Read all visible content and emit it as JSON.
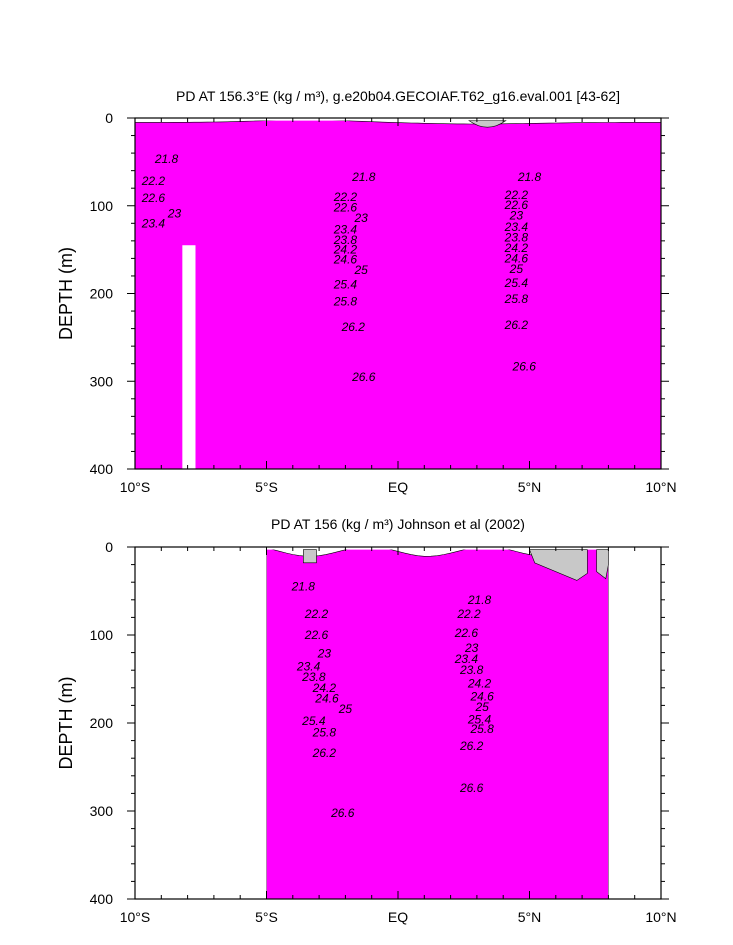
{
  "chart_data": [
    {
      "type": "contour",
      "title": "PD AT 156.3°E (kg / m³), g.e20b04.GECOIAF.T62_g16.eval.001 [43-62]",
      "ylabel": "DEPTH (m)",
      "xlabel": "",
      "xlim": [
        -10,
        10
      ],
      "ylim": [
        0,
        400
      ],
      "y_inverted": true,
      "x_ticks": [
        -10,
        -5,
        0,
        5,
        10
      ],
      "x_tick_labels": [
        "10°S",
        "5°S",
        "EQ",
        "5°N",
        "10°N"
      ],
      "y_ticks": [
        0,
        100,
        200,
        300,
        400
      ],
      "y_tick_labels": [
        "0",
        "100",
        "200",
        "300",
        "400"
      ],
      "data_extent": [
        -10,
        10
      ],
      "missing_column": [
        -8.2,
        -7.7,
        145,
        400
      ],
      "levels": [
        21.8,
        22.2,
        22.6,
        23,
        23.4,
        23.8,
        24.2,
        24.6,
        25,
        25.4,
        25.8,
        26.2,
        26.6
      ],
      "contour_labels": [
        {
          "text": "21.8",
          "x": -8.8,
          "y": 47
        },
        {
          "text": "21.8",
          "x": -1.3,
          "y": 67
        },
        {
          "text": "21.8",
          "x": 5.0,
          "y": 67
        },
        {
          "text": "22.2",
          "x": -9.3,
          "y": 72
        },
        {
          "text": "22.6",
          "x": -9.3,
          "y": 91
        },
        {
          "text": "23",
          "x": -8.5,
          "y": 109
        },
        {
          "text": "23.4",
          "x": -9.3,
          "y": 120
        },
        {
          "text": "22.2",
          "x": -2.0,
          "y": 90
        },
        {
          "text": "22.6",
          "x": -2.0,
          "y": 102
        },
        {
          "text": "23",
          "x": -1.4,
          "y": 114
        },
        {
          "text": "23.4",
          "x": -2.0,
          "y": 127
        },
        {
          "text": "23.8",
          "x": -2.0,
          "y": 139
        },
        {
          "text": "24.2",
          "x": -2.0,
          "y": 150
        },
        {
          "text": "24.6",
          "x": -2.0,
          "y": 161
        },
        {
          "text": "25",
          "x": -1.4,
          "y": 173
        },
        {
          "text": "25.4",
          "x": -2.0,
          "y": 190
        },
        {
          "text": "25.8",
          "x": -2.0,
          "y": 209
        },
        {
          "text": "26.2",
          "x": -1.7,
          "y": 238
        },
        {
          "text": "26.6",
          "x": -1.3,
          "y": 295
        },
        {
          "text": "22.2",
          "x": 4.5,
          "y": 88
        },
        {
          "text": "22.6",
          "x": 4.5,
          "y": 99
        },
        {
          "text": "23",
          "x": 4.5,
          "y": 111
        },
        {
          "text": "23.4",
          "x": 4.5,
          "y": 124
        },
        {
          "text": "23.8",
          "x": 4.5,
          "y": 136
        },
        {
          "text": "24.2",
          "x": 4.5,
          "y": 148
        },
        {
          "text": "24.6",
          "x": 4.5,
          "y": 160
        },
        {
          "text": "25",
          "x": 4.5,
          "y": 172
        },
        {
          "text": "25.4",
          "x": 4.5,
          "y": 188
        },
        {
          "text": "25.8",
          "x": 4.5,
          "y": 206
        },
        {
          "text": "26.2",
          "x": 4.5,
          "y": 236
        },
        {
          "text": "26.6",
          "x": 4.8,
          "y": 283
        }
      ]
    },
    {
      "type": "contour",
      "title": "PD AT 156 (kg / m³) Johnson et al (2002)",
      "ylabel": "DEPTH (m)",
      "xlabel": "",
      "xlim": [
        -10,
        10
      ],
      "ylim": [
        0,
        400
      ],
      "y_inverted": true,
      "x_ticks": [
        -10,
        -5,
        0,
        5,
        10
      ],
      "x_tick_labels": [
        "10°S",
        "5°S",
        "EQ",
        "5°N",
        "10°N"
      ],
      "y_ticks": [
        0,
        100,
        200,
        300,
        400
      ],
      "y_tick_labels": [
        "0",
        "100",
        "200",
        "300",
        "400"
      ],
      "data_extent": [
        -5,
        8
      ],
      "levels": [
        21.8,
        22.2,
        22.6,
        23,
        23.4,
        23.8,
        24.2,
        24.6,
        25,
        25.4,
        25.8,
        26.2,
        26.6
      ],
      "contour_labels": [
        {
          "text": "21.8",
          "x": -3.6,
          "y": 45
        },
        {
          "text": "22.2",
          "x": -3.1,
          "y": 76
        },
        {
          "text": "22.6",
          "x": -3.1,
          "y": 100
        },
        {
          "text": "23",
          "x": -2.8,
          "y": 121
        },
        {
          "text": "23.4",
          "x": -3.4,
          "y": 136
        },
        {
          "text": "23.8",
          "x": -3.2,
          "y": 148
        },
        {
          "text": "24.2",
          "x": -2.8,
          "y": 160
        },
        {
          "text": "24.6",
          "x": -2.7,
          "y": 172
        },
        {
          "text": "25",
          "x": -2.0,
          "y": 184
        },
        {
          "text": "25.4",
          "x": -3.2,
          "y": 198
        },
        {
          "text": "25.8",
          "x": -2.8,
          "y": 211
        },
        {
          "text": "26.2",
          "x": -2.8,
          "y": 234
        },
        {
          "text": "26.6",
          "x": -2.1,
          "y": 302
        },
        {
          "text": "21.8",
          "x": 3.1,
          "y": 60
        },
        {
          "text": "22.2",
          "x": 2.7,
          "y": 76
        },
        {
          "text": "22.6",
          "x": 2.6,
          "y": 98
        },
        {
          "text": "23",
          "x": 2.8,
          "y": 115
        },
        {
          "text": "23.4",
          "x": 2.6,
          "y": 127
        },
        {
          "text": "23.8",
          "x": 2.8,
          "y": 140
        },
        {
          "text": "24.2",
          "x": 3.1,
          "y": 155
        },
        {
          "text": "24.6",
          "x": 3.2,
          "y": 170
        },
        {
          "text": "25",
          "x": 3.2,
          "y": 182
        },
        {
          "text": "25.4",
          "x": 3.1,
          "y": 196
        },
        {
          "text": "25.8",
          "x": 3.2,
          "y": 207
        },
        {
          "text": "26.2",
          "x": 2.8,
          "y": 226
        },
        {
          "text": "26.6",
          "x": 2.8,
          "y": 274
        }
      ]
    }
  ],
  "colors": {
    "bands": [
      "#ff00ff",
      "#e000ff",
      "#b000e8",
      "#8020d8",
      "#2a2ad0",
      "#1a3cff",
      "#1e78ff",
      "#1ea8ff",
      "#18d0ee",
      "#20e8c0",
      "#20e890",
      "#30ec50",
      "#98f030",
      "#e0f040",
      "#ffe830",
      "#ffc828",
      "#ffa820",
      "#ff8818",
      "#ff6410",
      "#ff3c08",
      "#ff2000",
      "#e41200",
      "#cc0a00",
      "#b80500"
    ],
    "missing": "#c8c8c8"
  }
}
